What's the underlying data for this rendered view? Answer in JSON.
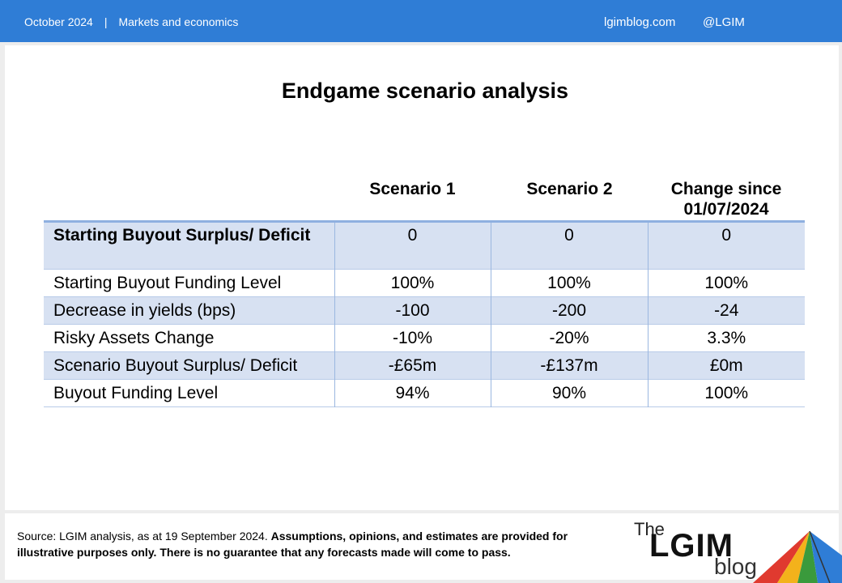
{
  "header": {
    "date": "October 2024",
    "separator": "|",
    "category": "Markets and economics",
    "site": "lgimblog.com",
    "handle": "@LGIM"
  },
  "title": "Endgame scenario analysis",
  "table": {
    "columns": [
      "Scenario 1",
      "Scenario 2",
      "Change since 01/07/2024"
    ],
    "rows": [
      {
        "label": "Starting Buyout Surplus/ Deficit",
        "values": [
          "0",
          "0",
          "0"
        ]
      },
      {
        "label": "Starting Buyout Funding Level",
        "values": [
          "100%",
          "100%",
          "100%"
        ]
      },
      {
        "label": "Decrease in yields (bps)",
        "values": [
          "-100",
          "-200",
          "-24"
        ]
      },
      {
        "label": "Risky Assets Change",
        "values": [
          "-10%",
          "-20%",
          "3.3%"
        ]
      },
      {
        "label": "Scenario Buyout Surplus/ Deficit",
        "values": [
          "-£65m",
          "-£137m",
          "£0m"
        ]
      },
      {
        "label": "Buyout Funding Level",
        "values": [
          "94%",
          "90%",
          "100%"
        ]
      }
    ]
  },
  "footer": {
    "source_text": "Source: LGIM  analysis, as at 19 September 2024. ",
    "disclaimer": "Assumptions,  opinions, and estimates are provided for illustrative purposes only. There is no guarantee that any  forecasts made will come to pass."
  },
  "logo": {
    "the": "The",
    "main": "LGIM",
    "blog": "blog"
  }
}
